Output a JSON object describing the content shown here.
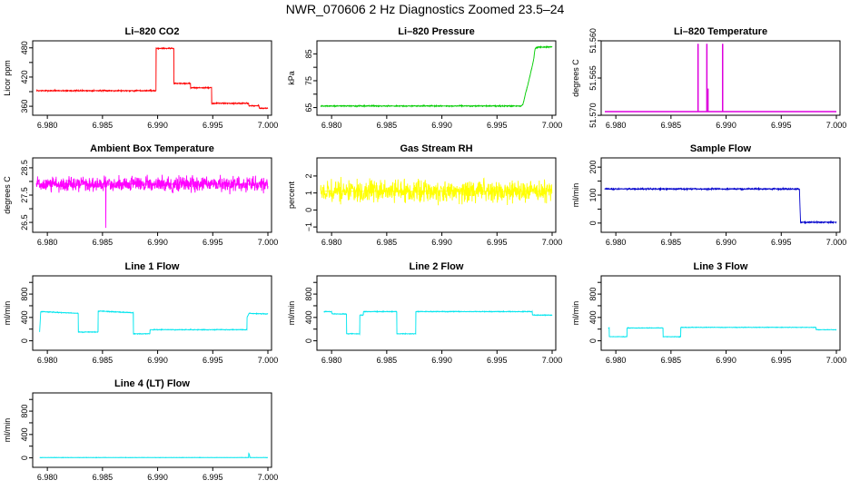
{
  "figure": {
    "title": "NWR_070606  2 Hz Diagnostics Zoomed 23.5–24"
  },
  "chart_data": [
    {
      "type": "line",
      "title": "Li–820 CO2",
      "xlabel": "",
      "ylabel": "Licor ppm",
      "color": "#ff0000",
      "xlim": [
        6.979,
        7.0
      ],
      "ylim": [
        349,
        487
      ],
      "xticks": [
        6.98,
        6.985,
        6.99,
        6.995,
        7.0
      ],
      "xtick_labels": [
        "6.980",
        "6.985",
        "6.990",
        "6.995",
        "7.000"
      ],
      "yticks": [
        360,
        390,
        420,
        450,
        480
      ],
      "ytick_labels": [
        "360",
        "",
        "420",
        "",
        "480"
      ],
      "series": [
        {
          "x": [
            6.979,
            6.98985,
            6.98986,
            6.99147,
            6.99148,
            6.99298,
            6.99299,
            6.99489,
            6.9949,
            6.99826,
            6.99827,
            6.9992,
            6.99921,
            7.0
          ],
          "y": [
            392,
            392,
            479,
            479,
            407,
            407,
            398,
            398,
            366,
            366,
            361,
            361,
            356,
            356
          ],
          "noise": 0.8
        }
      ]
    },
    {
      "type": "line",
      "title": "Li–820 Pressure",
      "xlabel": "",
      "ylabel": "kPa",
      "color": "#00cc00",
      "xlim": [
        6.979,
        7.0
      ],
      "ylim": [
        63.5,
        88.5
      ],
      "xticks": [
        6.98,
        6.985,
        6.99,
        6.995,
        7.0
      ],
      "xtick_labels": [
        "6.980",
        "6.985",
        "6.990",
        "6.995",
        "7.000"
      ],
      "yticks": [
        65,
        70,
        75,
        80,
        85
      ],
      "ytick_labels": [
        "65",
        "",
        "75",
        "",
        "85"
      ],
      "series": [
        {
          "x": [
            6.979,
            6.9972,
            6.99735,
            6.99745,
            6.9976,
            6.9978,
            6.998,
            6.9982,
            6.99835,
            6.9984,
            6.99845,
            6.9985,
            6.9986,
            6.9987,
            7.0
          ],
          "y": [
            65.6,
            65.6,
            66.2,
            67.8,
            70.5,
            73.5,
            77,
            80.5,
            83.5,
            85.5,
            86.7,
            87.2,
            87.4,
            87.5,
            87.6
          ],
          "noise": 0.12
        }
      ]
    },
    {
      "type": "line",
      "title": "Li–820 Temperature",
      "xlabel": "",
      "ylabel": "degrees C",
      "color": "#dd00dd",
      "xlim": [
        6.979,
        7.0
      ],
      "ylim": [
        51.5695,
        51.5605
      ],
      "xticks": [
        6.98,
        6.985,
        6.99,
        6.995,
        7.0
      ],
      "xtick_labels": [
        "6.980",
        "6.985",
        "6.990",
        "6.995",
        "7.000"
      ],
      "yticks": [
        51.57,
        51.565,
        51.56
      ],
      "ytick_labels": [
        "51.570",
        "51.565",
        "51.560"
      ],
      "series": [
        {
          "x": [
            6.979,
            6.98745,
            6.98745,
            6.98746,
            6.98746,
            6.98825,
            6.98825,
            6.98826,
            6.98826,
            6.98835,
            6.98835,
            6.98836,
            6.98836,
            6.98968,
            6.98968,
            6.98969,
            6.98969,
            7.0
          ],
          "y": [
            51.5695,
            51.5695,
            51.5605,
            51.5605,
            51.5695,
            51.5695,
            51.5605,
            51.5605,
            51.5695,
            51.5695,
            51.5665,
            51.5665,
            51.5695,
            51.5695,
            51.5605,
            51.5605,
            51.5695,
            51.5695
          ],
          "noise": 0
        }
      ]
    },
    {
      "type": "line",
      "title": "Ambient Box Temperature",
      "xlabel": "",
      "ylabel": "degrees C",
      "color": "#ff00ff",
      "xlim": [
        6.979,
        7.0
      ],
      "ylim": [
        26.27,
        28.73
      ],
      "xticks": [
        6.98,
        6.985,
        6.99,
        6.995,
        7.0
      ],
      "xtick_labels": [
        "6.980",
        "6.985",
        "6.990",
        "6.995",
        "7.000"
      ],
      "yticks": [
        26.5,
        27.0,
        27.5,
        28.0,
        28.5
      ],
      "ytick_labels": [
        "26.5",
        "",
        "27.5",
        "",
        "28.5"
      ],
      "series": [
        {
          "x": [
            6.979,
            6.98529,
            6.9853,
            6.98531,
            7.0
          ],
          "y": [
            27.9,
            27.9,
            26.3,
            27.9,
            27.9
          ],
          "noise": 0.17
        }
      ]
    },
    {
      "type": "line",
      "title": "Gas Stream RH",
      "xlabel": "",
      "ylabel": "percent",
      "color": "#ffff00",
      "xlim": [
        6.979,
        7.0
      ],
      "ylim": [
        -1.1,
        2.85
      ],
      "xticks": [
        6.98,
        6.985,
        6.99,
        6.995,
        7.0
      ],
      "xtick_labels": [
        "6.980",
        "6.985",
        "6.990",
        "6.995",
        "7.000"
      ],
      "yticks": [
        -1,
        0,
        1,
        2
      ],
      "ytick_labels": [
        "−1",
        "0",
        "1",
        "2"
      ],
      "series": [
        {
          "x": [
            6.979,
            7.0
          ],
          "y": [
            1.1,
            1.1
          ],
          "noise": 0.38
        }
      ]
    },
    {
      "type": "line",
      "title": "Sample Flow",
      "xlabel": "",
      "ylabel": "ml/min",
      "color": "#0000cc",
      "xlim": [
        6.979,
        7.0
      ],
      "ylim": [
        -20,
        220
      ],
      "xticks": [
        6.98,
        6.985,
        6.99,
        6.995,
        7.0
      ],
      "xtick_labels": [
        "6.980",
        "6.985",
        "6.990",
        "6.995",
        "7.000"
      ],
      "yticks": [
        0,
        50,
        100,
        150,
        200
      ],
      "ytick_labels": [
        "0",
        "",
        "100",
        "",
        "200"
      ],
      "series": [
        {
          "x": [
            6.979,
            6.99665,
            6.9967,
            6.99675,
            7.0
          ],
          "y": [
            122,
            122,
            60,
            3,
            3
          ],
          "noise": 1.5
        }
      ]
    },
    {
      "type": "line",
      "title": "Line 1 Flow",
      "xlabel": "",
      "ylabel": "ml/min",
      "color": "#00e5ee",
      "xlim": [
        6.979,
        7.0
      ],
      "ylim": [
        -100,
        1050
      ],
      "xticks": [
        6.98,
        6.985,
        6.99,
        6.995,
        7.0
      ],
      "xtick_labels": [
        "6.980",
        "6.985",
        "6.990",
        "6.995",
        "7.000"
      ],
      "yticks": [
        0,
        200,
        400,
        600,
        800,
        1000
      ],
      "ytick_labels": [
        "0",
        "",
        "400",
        "",
        "800",
        ""
      ],
      "series": [
        {
          "x": [
            6.9793,
            6.9794,
            6.9828,
            6.98281,
            6.9846,
            6.98461,
            6.9878,
            6.98781,
            6.9893,
            6.98931,
            6.9981,
            6.99811,
            6.9983,
            7.0
          ],
          "y": [
            150,
            500,
            470,
            150,
            150,
            510,
            480,
            120,
            120,
            190,
            190,
            400,
            470,
            460
          ],
          "noise": 4
        }
      ]
    },
    {
      "type": "line",
      "title": "Line 2 Flow",
      "xlabel": "",
      "ylabel": "ml/min",
      "color": "#00e5ee",
      "xlim": [
        6.979,
        7.0
      ],
      "ylim": [
        -100,
        1050
      ],
      "xticks": [
        6.98,
        6.985,
        6.99,
        6.995,
        7.0
      ],
      "xtick_labels": [
        "6.980",
        "6.985",
        "6.990",
        "6.995",
        "7.000"
      ],
      "yticks": [
        0,
        200,
        400,
        600,
        800,
        1000
      ],
      "ytick_labels": [
        "0",
        "",
        "400",
        "",
        "800",
        ""
      ],
      "series": [
        {
          "x": [
            6.9793,
            6.98,
            6.98005,
            6.98135,
            6.98136,
            6.98255,
            6.98256,
            6.98288,
            6.98289,
            6.98591,
            6.98592,
            6.98763,
            6.98764,
            6.9982,
            6.99821,
            7.0
          ],
          "y": [
            500,
            500,
            460,
            460,
            120,
            120,
            440,
            440,
            500,
            500,
            120,
            120,
            500,
            500,
            440,
            440
          ],
          "noise": 4
        }
      ]
    },
    {
      "type": "line",
      "title": "Line 3 Flow",
      "xlabel": "",
      "ylabel": "ml/min",
      "color": "#00e5ee",
      "xlim": [
        6.979,
        7.0
      ],
      "ylim": [
        -100,
        1050
      ],
      "xticks": [
        6.98,
        6.985,
        6.99,
        6.995,
        7.0
      ],
      "xtick_labels": [
        "6.980",
        "6.985",
        "6.990",
        "6.995",
        "7.000"
      ],
      "yticks": [
        0,
        200,
        400,
        600,
        800,
        1000
      ],
      "ytick_labels": [
        "0",
        "",
        "400",
        "",
        "800",
        ""
      ],
      "series": [
        {
          "x": [
            6.9793,
            6.9794,
            6.97941,
            6.98101,
            6.98102,
            6.98428,
            6.98429,
            6.98588,
            6.98589,
            6.99815,
            6.99816,
            7.0
          ],
          "y": [
            220,
            220,
            70,
            70,
            220,
            220,
            70,
            70,
            230,
            230,
            190,
            190
          ],
          "noise": 3
        }
      ]
    },
    {
      "type": "line",
      "title": "Line 4 (LT) Flow",
      "xlabel": "",
      "ylabel": "ml/min",
      "color": "#00e5ee",
      "xlim": [
        6.979,
        7.0
      ],
      "ylim": [
        -100,
        1050
      ],
      "xticks": [
        6.98,
        6.985,
        6.99,
        6.995,
        7.0
      ],
      "xtick_labels": [
        "6.980",
        "6.985",
        "6.990",
        "6.995",
        "7.000"
      ],
      "yticks": [
        0,
        200,
        400,
        600,
        800,
        1000
      ],
      "ytick_labels": [
        "0",
        "",
        "400",
        "",
        "800",
        ""
      ],
      "series": [
        {
          "x": [
            6.9793,
            6.99825,
            6.99826,
            6.99835,
            6.99836,
            7.0
          ],
          "y": [
            5,
            5,
            80,
            40,
            5,
            5
          ],
          "noise": 2
        }
      ]
    }
  ]
}
